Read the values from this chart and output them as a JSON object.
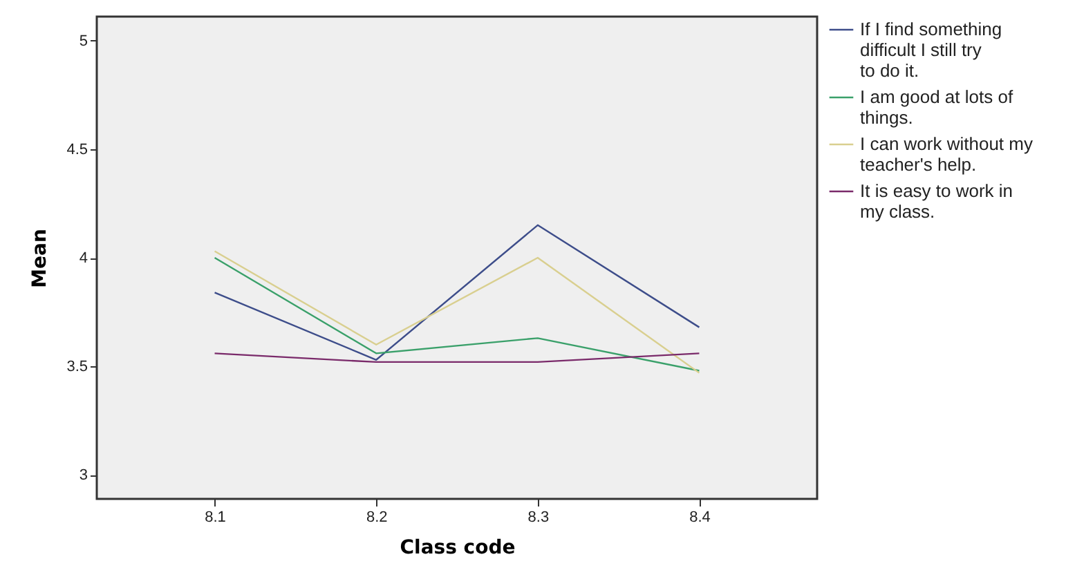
{
  "chart_data": {
    "type": "line",
    "xlabel": "Class code",
    "ylabel": "Mean",
    "categories": [
      "8.1",
      "8.2",
      "8.3",
      "8.4"
    ],
    "ylim": [
      2.89,
      5.11
    ],
    "yticks": [
      3,
      3.5,
      4,
      4.5,
      5
    ],
    "grid": false,
    "legend": "top right",
    "marker": "none",
    "line_style": "solid",
    "series": [
      {
        "name": "If I find something difficult I still try to do it.",
        "color": "#3d4d8a",
        "values": [
          3.84,
          3.53,
          4.15,
          3.68
        ]
      },
      {
        "name": "I am good at lots of things.",
        "color": "#3aa06a",
        "values": [
          4.0,
          3.56,
          3.63,
          3.48
        ]
      },
      {
        "name": "I can work without my teacher's help.",
        "color": "#d9cf8f",
        "values": [
          4.03,
          3.6,
          4.0,
          3.47
        ]
      },
      {
        "name": "It is easy to work in my class.",
        "color": "#7a2a6a",
        "values": [
          3.56,
          3.52,
          3.52,
          3.56
        ]
      }
    ]
  }
}
